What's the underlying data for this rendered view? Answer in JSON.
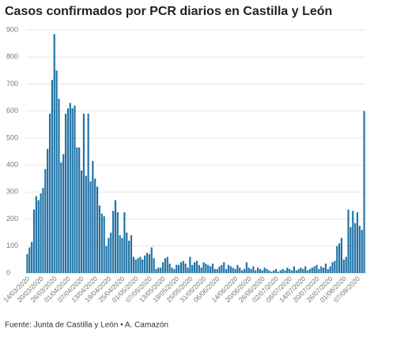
{
  "chart_data": {
    "type": "bar",
    "title": "Casos confirmados por PCR diarios en Castilla y León",
    "source": "Fuente: Junta de Castilla y León • A. Camazón",
    "color": "#1f73a6",
    "grid": true,
    "ylim": [
      0,
      900
    ],
    "yticks": [
      0,
      100,
      200,
      300,
      400,
      500,
      600,
      700,
      800,
      900
    ],
    "categories": [
      "14/03/2020",
      null,
      null,
      null,
      null,
      null,
      "20/03/2020",
      null,
      null,
      null,
      null,
      null,
      "26/03/2020",
      null,
      null,
      null,
      null,
      null,
      "01/04/2020",
      null,
      null,
      null,
      null,
      null,
      "07/04/2020",
      null,
      null,
      null,
      null,
      null,
      "13/04/2020",
      null,
      null,
      null,
      null,
      null,
      "19/04/2020",
      null,
      null,
      null,
      null,
      null,
      "25/04/2020",
      null,
      null,
      null,
      null,
      null,
      "01/05/2020",
      null,
      null,
      null,
      null,
      null,
      "07/05/2020",
      null,
      null,
      null,
      null,
      null,
      "13/05/2020",
      null,
      null,
      null,
      null,
      null,
      "19/05/2020",
      null,
      null,
      null,
      null,
      null,
      "25/05/2020",
      null,
      null,
      null,
      null,
      null,
      "31/05/2020",
      null,
      null,
      null,
      null,
      null,
      "06/06/2020",
      null,
      null,
      null,
      null,
      null,
      null,
      null,
      "14/06/2020",
      null,
      null,
      null,
      null,
      null,
      "20/06/2020",
      null,
      null,
      null,
      null,
      null,
      "26/06/2020",
      null,
      null,
      null,
      null,
      null,
      "02/07/2020",
      null,
      null,
      null,
      null,
      null,
      "08/07/2020",
      null,
      null,
      null,
      null,
      null,
      "14/07/2020",
      null,
      null,
      null,
      null,
      null,
      "20/07/2020",
      null,
      null,
      null,
      null,
      null,
      "26/07/2020",
      null,
      null,
      null,
      null,
      null,
      "01/08/2020",
      null,
      null,
      null,
      null,
      null,
      "07/08/2020",
      null,
      null,
      null
    ],
    "values": [
      70,
      95,
      115,
      235,
      285,
      270,
      295,
      315,
      385,
      460,
      590,
      715,
      885,
      750,
      645,
      410,
      440,
      590,
      610,
      630,
      610,
      620,
      465,
      465,
      380,
      590,
      360,
      590,
      340,
      415,
      350,
      320,
      250,
      220,
      210,
      100,
      130,
      150,
      230,
      270,
      225,
      140,
      130,
      225,
      150,
      120,
      140,
      60,
      50,
      55,
      60,
      50,
      65,
      75,
      70,
      95,
      55,
      15,
      20,
      20,
      40,
      55,
      60,
      35,
      20,
      15,
      30,
      30,
      40,
      45,
      35,
      20,
      60,
      30,
      40,
      45,
      30,
      20,
      40,
      35,
      30,
      25,
      35,
      15,
      15,
      25,
      30,
      40,
      15,
      30,
      25,
      20,
      15,
      30,
      20,
      10,
      15,
      40,
      20,
      15,
      25,
      10,
      20,
      15,
      10,
      20,
      15,
      10,
      5,
      10,
      15,
      5,
      10,
      15,
      10,
      20,
      15,
      10,
      25,
      10,
      15,
      20,
      15,
      25,
      10,
      15,
      20,
      25,
      30,
      15,
      25,
      20,
      35,
      15,
      25,
      40,
      45,
      100,
      110,
      130,
      50,
      60,
      235,
      170,
      230,
      185,
      225,
      175,
      160,
      600
    ]
  }
}
